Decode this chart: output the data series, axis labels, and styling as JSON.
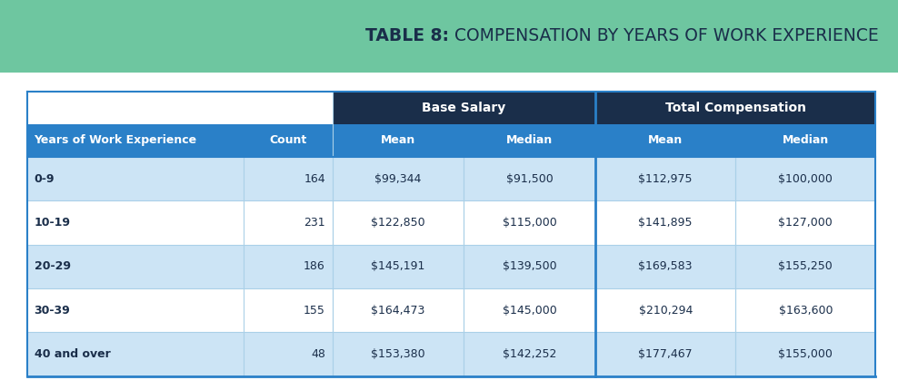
{
  "title_bold": "TABLE 8:",
  "title_regular": " COMPENSATION BY YEARS OF WORK EXPERIENCE",
  "title_bg": "#6ec6a0",
  "title_text_color": "#1a2e4a",
  "header_dark_bg": "#1a2e4a",
  "header_blue_bg": "#2a80c8",
  "subheader_text_color": "#ffffff",
  "col_headers": [
    "Years of Work Experience",
    "Count",
    "Mean",
    "Median",
    "Mean",
    "Median"
  ],
  "group_headers": [
    "Base Salary",
    "Total Compensation"
  ],
  "row_bg_light": "#cce4f5",
  "row_bg_white": "#ffffff",
  "row_text_color": "#1a2e4a",
  "rows": [
    [
      "0-9",
      "164",
      "$99,344",
      "$91,500",
      "$112,975",
      "$100,000"
    ],
    [
      "10-19",
      "231",
      "$122,850",
      "$115,000",
      "$141,895",
      "$127,000"
    ],
    [
      "20-29",
      "186",
      "$145,191",
      "$139,500",
      "$169,583",
      "$155,250"
    ],
    [
      "30-39",
      "155",
      "$164,473",
      "$145,000",
      "$210,294",
      "$163,600"
    ],
    [
      "40 and over",
      "48",
      "$153,380",
      "$142,252",
      "$177,467",
      "$155,000"
    ]
  ],
  "outer_border_color": "#2a80c8",
  "grid_color": "#aad0e8",
  "divider_color": "#2a80c8",
  "fig_width": 9.88,
  "fig_height": 4.19,
  "dpi": 100
}
